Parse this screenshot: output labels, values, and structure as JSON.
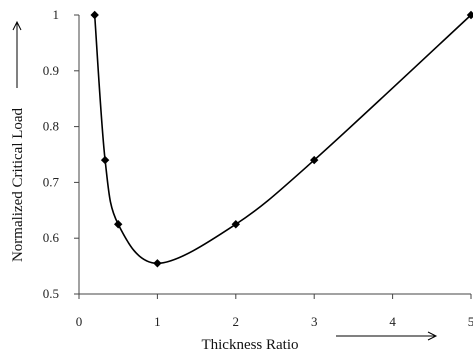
{
  "chart_data": {
    "type": "line",
    "title": "",
    "xlabel": "Thickness Ratio",
    "ylabel": "Normalized Critical Load",
    "xlim": [
      0,
      5
    ],
    "ylim": [
      0.5,
      1
    ],
    "xticks": [
      0,
      1,
      2,
      3,
      4,
      5
    ],
    "yticks": [
      0.5,
      0.6,
      0.7,
      0.8,
      0.9,
      1
    ],
    "ytick_labels": [
      "0.5",
      "0.6",
      "0.7",
      "0.8",
      "0.9",
      "1"
    ],
    "grid": false,
    "legend": "none",
    "series": [
      {
        "x": [
          0.2,
          0.333,
          0.5,
          1,
          2,
          3,
          5
        ],
        "y": [
          1.0,
          0.74,
          0.625,
          0.555,
          0.625,
          0.74,
          1.0
        ],
        "marker": "diamond",
        "smooth": true
      }
    ],
    "colors": {
      "line": "#000000",
      "axis": "#444444"
    }
  }
}
